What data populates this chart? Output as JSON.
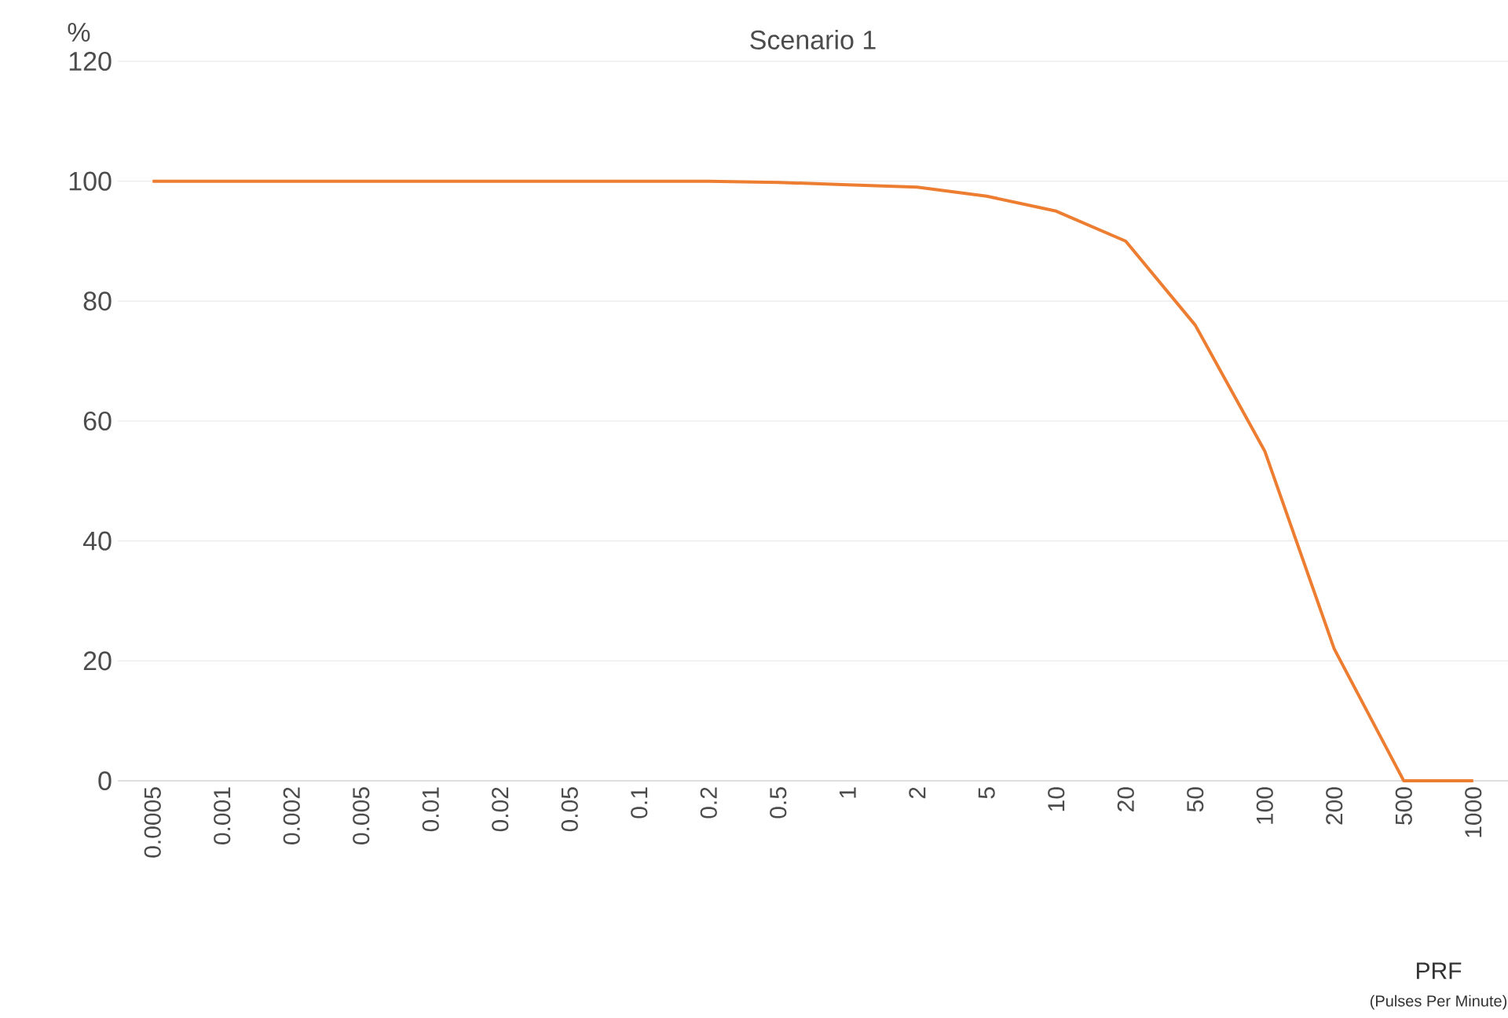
{
  "chart_data": {
    "type": "line",
    "title": "Scenario 1",
    "xlabel": "PRF",
    "ylabel": "%",
    "annotations": [
      "(Pulses Per Minute)"
    ],
    "categories": [
      "0.0005",
      "0.001",
      "0.002",
      "0.005",
      "0.01",
      "0.02",
      "0.05",
      "0.1",
      "0.2",
      "0.5",
      "1",
      "2",
      "5",
      "10",
      "20",
      "50",
      "100",
      "200",
      "500",
      "1000"
    ],
    "values": [
      100,
      100,
      100,
      100,
      100,
      100,
      100,
      100,
      100,
      99.8,
      99.4,
      99,
      97.5,
      95,
      90,
      76,
      55,
      22,
      0,
      0
    ],
    "color": "#ed7d31",
    "ylim": [
      0,
      120
    ],
    "yticks": [
      0,
      20,
      40,
      60,
      80,
      100,
      120
    ],
    "grid": "y"
  }
}
